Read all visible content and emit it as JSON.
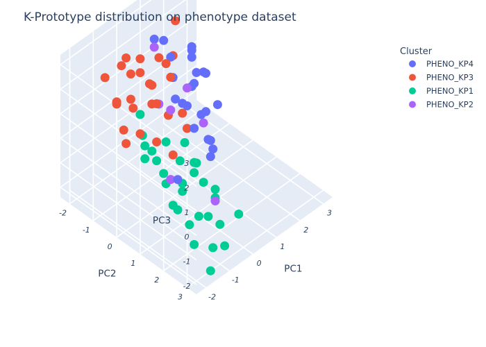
{
  "chart_data": {
    "type": "scatter",
    "title": "K-Prototype distribution on phenotype dataset",
    "axes": {
      "x": {
        "label": "PC1",
        "ticks": [
          "-2",
          "-1",
          "0",
          "1",
          "2",
          "3"
        ]
      },
      "y": {
        "label": "PC2",
        "ticks": [
          "-2",
          "-1",
          "0",
          "1",
          "2",
          "3"
        ]
      },
      "z": {
        "label": "PC3",
        "ticks": [
          "-2",
          "-1",
          "0",
          "1",
          "2",
          "3"
        ]
      }
    },
    "legend": {
      "title": "Cluster",
      "placement": "top-right"
    },
    "series": [
      {
        "name": "PHENO_KP4",
        "color": "#636efa",
        "points": [
          [
            2.0,
            -1.2,
            1.4
          ],
          [
            2.4,
            -1.6,
            1.0
          ],
          [
            2.2,
            -0.8,
            0.6
          ],
          [
            1.8,
            -1.0,
            0.2
          ],
          [
            2.6,
            -1.8,
            0.3
          ],
          [
            2.7,
            -1.4,
            -0.1
          ],
          [
            1.5,
            -0.6,
            0.8
          ],
          [
            1.2,
            -1.3,
            1.6
          ],
          [
            1.0,
            -0.9,
            0.3
          ],
          [
            2.9,
            -1.9,
            -0.6
          ],
          [
            1.6,
            -0.4,
            -0.4
          ],
          [
            2.1,
            -0.2,
            -0.2
          ],
          [
            0.9,
            -0.3,
            0.5
          ],
          [
            1.3,
            0.2,
            -0.8
          ],
          [
            1.9,
            -1.5,
            -0.9
          ],
          [
            2.3,
            -0.9,
            -1.1
          ],
          [
            0.6,
            0.3,
            0.2
          ],
          [
            1.1,
            0.5,
            -0.5
          ],
          [
            0.2,
            -0.2,
            2.2
          ],
          [
            0.8,
            -1.6,
            2.4
          ],
          [
            1.7,
            0.0,
            -1.6
          ],
          [
            -0.4,
            0.6,
            -1.0
          ],
          [
            0.4,
            1.2,
            -0.2
          ],
          [
            1.4,
            -1.8,
            1.8
          ]
        ]
      },
      {
        "name": "PHENO_KP3",
        "color": "#ef553b",
        "points": [
          [
            -0.8,
            -1.2,
            3.0
          ],
          [
            -0.5,
            -0.9,
            2.4
          ],
          [
            -1.2,
            -0.6,
            2.0
          ],
          [
            -0.3,
            -1.5,
            1.8
          ],
          [
            0.2,
            -0.8,
            2.6
          ],
          [
            -1.0,
            -1.4,
            1.2
          ],
          [
            -0.6,
            -0.3,
            1.6
          ],
          [
            0.1,
            -1.1,
            1.4
          ],
          [
            -1.5,
            -0.9,
            1.8
          ],
          [
            -0.2,
            -0.5,
            1.2
          ],
          [
            0.4,
            -1.3,
            1.0
          ],
          [
            -1.3,
            -0.1,
            1.0
          ],
          [
            -0.7,
            -1.7,
            0.8
          ],
          [
            0.6,
            -0.7,
            1.6
          ],
          [
            -0.9,
            0.2,
            0.6
          ],
          [
            0.0,
            -0.2,
            0.8
          ],
          [
            -0.4,
            -1.8,
            2.0
          ],
          [
            1.0,
            -1.0,
            2.0
          ],
          [
            -1.6,
            -0.4,
            0.6
          ],
          [
            0.3,
            0.3,
            0.4
          ],
          [
            -0.1,
            -1.6,
            0.2
          ],
          [
            1.2,
            -1.5,
            1.2
          ],
          [
            -1.1,
            -1.0,
            0.4
          ],
          [
            0.8,
            -0.4,
            0.2
          ],
          [
            -0.5,
            0.5,
            0.0
          ],
          [
            0.5,
            -1.9,
            1.6
          ],
          [
            -1.4,
            -1.5,
            2.4
          ],
          [
            1.8,
            -1.7,
            2.4
          ]
        ]
      },
      {
        "name": "PHENO_KP1",
        "color": "#00cc96",
        "points": [
          [
            -1.8,
            0.6,
            0.8
          ],
          [
            -1.4,
            1.0,
            0.2
          ],
          [
            -1.0,
            1.4,
            -0.2
          ],
          [
            -1.6,
            1.8,
            -0.6
          ],
          [
            -0.8,
            1.2,
            -0.8
          ],
          [
            -1.2,
            0.3,
            0.5
          ],
          [
            -0.6,
            0.9,
            0.1
          ],
          [
            -1.9,
            1.2,
            1.2
          ],
          [
            -0.3,
            1.6,
            -0.5
          ],
          [
            -1.5,
            2.2,
            -1.0
          ],
          [
            -0.9,
            2.0,
            -1.2
          ],
          [
            -1.7,
            2.6,
            -1.4
          ],
          [
            -0.4,
            2.4,
            -1.6
          ],
          [
            -1.1,
            2.8,
            -1.8
          ],
          [
            0.0,
            1.8,
            -1.2
          ],
          [
            -2.0,
            0.8,
            1.6
          ],
          [
            -1.3,
            0.0,
            1.0
          ],
          [
            -0.7,
            0.4,
            0.6
          ],
          [
            -0.2,
            1.1,
            -0.1
          ],
          [
            -1.8,
            1.5,
            0.4
          ],
          [
            -0.5,
            2.7,
            -2.2
          ],
          [
            -1.4,
            3.0,
            -2.4
          ],
          [
            0.2,
            0.8,
            -0.6
          ],
          [
            0.4,
            1.4,
            -1.4
          ],
          [
            -1.0,
            2.5,
            -0.8
          ],
          [
            -2.0,
            2.0,
            0.0
          ],
          [
            -0.1,
            0.6,
            0.3
          ],
          [
            -1.6,
            0.2,
            2.2
          ],
          [
            0.6,
            2.2,
            -2.0
          ],
          [
            -0.8,
            1.7,
            0.3
          ]
        ]
      },
      {
        "name": "PHENO_KP2",
        "color": "#ab63fa",
        "points": [
          [
            1.0,
            -1.8,
            1.8
          ],
          [
            1.8,
            -1.2,
            0.0
          ],
          [
            0.5,
            -0.6,
            0.4
          ],
          [
            -0.6,
            0.0,
            1.8
          ],
          [
            0.2,
            1.6,
            -1.6
          ],
          [
            -1.5,
            1.4,
            0.3
          ],
          [
            1.4,
            -0.1,
            -0.4
          ]
        ]
      }
    ]
  }
}
